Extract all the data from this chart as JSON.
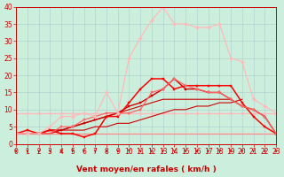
{
  "xlabel": "Vent moyen/en rafales ( km/h )",
  "x": [
    0,
    1,
    2,
    3,
    4,
    5,
    6,
    7,
    8,
    9,
    10,
    11,
    12,
    13,
    14,
    15,
    16,
    17,
    18,
    19,
    20,
    21,
    22,
    23
  ],
  "ylim": [
    0,
    40
  ],
  "xlim": [
    0,
    23
  ],
  "yticks": [
    0,
    5,
    10,
    15,
    20,
    25,
    30,
    35,
    40
  ],
  "background_color": "#cceedd",
  "grid_color": "#aacccc",
  "lines": [
    {
      "y": [
        3,
        3,
        3,
        3,
        3,
        3,
        3,
        3,
        3,
        3,
        3,
        3,
        3,
        3,
        3,
        3,
        3,
        3,
        3,
        3,
        3,
        3,
        3,
        3
      ],
      "color": "#ff8888",
      "marker": null,
      "linewidth": 0.9,
      "ms": 0
    },
    {
      "y": [
        9,
        9,
        9,
        9,
        9,
        9,
        9,
        9,
        9,
        9,
        9,
        9,
        9,
        9,
        9,
        9,
        9,
        9,
        9,
        9,
        9,
        9,
        9,
        9
      ],
      "color": "#ffbbbb",
      "marker": "D",
      "linewidth": 0.9,
      "ms": 1.8
    },
    {
      "y": [
        3,
        3,
        3,
        3,
        4,
        4,
        4,
        5,
        5,
        6,
        6,
        7,
        8,
        9,
        10,
        10,
        11,
        11,
        12,
        12,
        13,
        null,
        null,
        null
      ],
      "color": "#cc0000",
      "marker": null,
      "linewidth": 0.8,
      "ms": 0
    },
    {
      "y": [
        3,
        3,
        3,
        4,
        4,
        5,
        6,
        7,
        8,
        9,
        10,
        11,
        12,
        13,
        13,
        13,
        13,
        13,
        13,
        13,
        null,
        null,
        null,
        null
      ],
      "color": "#cc0000",
      "marker": null,
      "linewidth": 0.8,
      "ms": 0
    },
    {
      "y": [
        3,
        3,
        3,
        4,
        4,
        5,
        6,
        7,
        8,
        9,
        11,
        12,
        14,
        16,
        19,
        16,
        16,
        15,
        15,
        13,
        11,
        10,
        8,
        3
      ],
      "color": "#cc0000",
      "marker": "s",
      "linewidth": 1.0,
      "ms": 2.0
    },
    {
      "y": [
        3,
        4,
        3,
        4,
        3,
        3,
        2,
        3,
        8,
        8,
        12,
        16,
        19,
        19,
        16,
        17,
        17,
        17,
        17,
        17,
        12,
        8,
        5,
        3
      ],
      "color": "#ff0000",
      "marker": "s",
      "linewidth": 1.1,
      "ms": 2.0
    },
    {
      "y": [
        3,
        3,
        3,
        3,
        5,
        5,
        7,
        8,
        9,
        9,
        9,
        10,
        15,
        16,
        19,
        17,
        16,
        15,
        15,
        13,
        11,
        10,
        8,
        3
      ],
      "color": "#ff6666",
      "marker": "s",
      "linewidth": 0.9,
      "ms": 2.0
    },
    {
      "y": [
        3,
        3,
        3,
        5,
        8,
        8,
        9,
        8,
        15,
        9,
        25,
        31,
        36,
        40,
        35,
        35,
        34,
        34,
        35,
        25,
        24,
        13,
        11,
        9
      ],
      "color": "#ffbbbb",
      "marker": "D",
      "linewidth": 0.9,
      "ms": 2.0
    }
  ],
  "tick_color": "#cc0000",
  "tick_fontsize": 5.5,
  "label_fontsize": 6.5,
  "arrow_angles": [
    225,
    270,
    225,
    225,
    270,
    270,
    225,
    270,
    270,
    225,
    225,
    270,
    270,
    270,
    225,
    270,
    225,
    225,
    270,
    225,
    225,
    225,
    225,
    225
  ]
}
